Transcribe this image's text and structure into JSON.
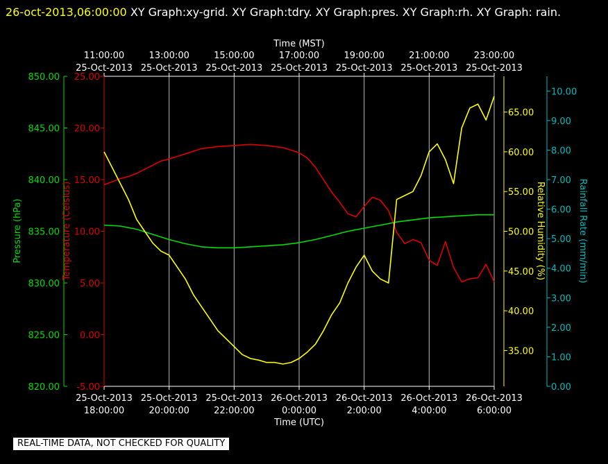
{
  "header": {
    "timestamp": "26-oct-2013,06:00:00",
    "graphs": "  XY Graph:xy-grid.  XY Graph:tdry.  XY Graph:pres.  XY Graph:rh.  XY Graph: rain."
  },
  "footer": {
    "quality_note": "REAL-TIME DATA, NOT CHECKED FOR QUALITY"
  },
  "chart_data": {
    "type": "line",
    "grid": true,
    "top_axis": {
      "label": "Time (MST)",
      "ticks": [
        {
          "x": 0,
          "time": "11:00:00",
          "date": "25-Oct-2013"
        },
        {
          "x": 2,
          "time": "13:00:00",
          "date": "25-Oct-2013"
        },
        {
          "x": 4,
          "time": "15:00:00",
          "date": "25-Oct-2013"
        },
        {
          "x": 6,
          "time": "17:00:00",
          "date": "25-Oct-2013"
        },
        {
          "x": 8,
          "time": "19:00:00",
          "date": "25-Oct-2013"
        },
        {
          "x": 10,
          "time": "21:00:00",
          "date": "25-Oct-2013"
        },
        {
          "x": 12,
          "time": "23:00:00",
          "date": "25-Oct-2013"
        }
      ]
    },
    "bottom_axis": {
      "label": "Time (UTC)",
      "ticks": [
        {
          "x": 0,
          "date": "25-Oct-2013",
          "time": "18:00:00"
        },
        {
          "x": 2,
          "date": "25-Oct-2013",
          "time": "20:00:00"
        },
        {
          "x": 4,
          "date": "25-Oct-2013",
          "time": "22:00:00"
        },
        {
          "x": 6,
          "date": "26-Oct-2013",
          "time": "0:00:00"
        },
        {
          "x": 8,
          "date": "26-Oct-2013",
          "time": "2:00:00"
        },
        {
          "x": 10,
          "date": "26-Oct-2013",
          "time": "4:00:00"
        },
        {
          "x": 12,
          "date": "26-Oct-2013",
          "time": "6:00:00"
        }
      ],
      "xlim": [
        0,
        12
      ]
    },
    "axes": {
      "pressure": {
        "label": "Pressure (hPa)",
        "color": "#00dd00",
        "ylim": [
          820,
          850
        ],
        "ticks": [
          "820.00",
          "825.00",
          "830.00",
          "835.00",
          "840.00",
          "845.00",
          "850.00"
        ]
      },
      "temperature": {
        "label": "Temperature (Celsius)",
        "color": "#dd0000",
        "ylim": [
          -5,
          25
        ],
        "ticks": [
          "-5.00",
          "0.00",
          "5.00",
          "10.00",
          "15.00",
          "20.00",
          "25.00"
        ]
      },
      "humidity": {
        "label": "Relative Humidity (%)",
        "color": "#ffff00",
        "ylim": [
          30.5,
          69.5
        ],
        "ticks": [
          "35.00",
          "40.00",
          "45.00",
          "50.00",
          "55.00",
          "60.00",
          "65.00"
        ]
      },
      "rain": {
        "label": "Rainfall Rate (mm/min)",
        "color": "#00bbbb",
        "ylim": [
          0,
          10.5
        ],
        "ticks": [
          "0.00",
          "1.00",
          "2.00",
          "3.00",
          "4.00",
          "5.00",
          "6.00",
          "7.00",
          "8.00",
          "9.00",
          "10.00"
        ]
      }
    },
    "series": [
      {
        "name": "Temperature",
        "axis": "temperature",
        "color": "#dd0000",
        "x": [
          0,
          0.25,
          0.5,
          0.75,
          1,
          1.25,
          1.5,
          1.75,
          2,
          2.5,
          3,
          3.5,
          4,
          4.5,
          5,
          5.5,
          6,
          6.25,
          6.5,
          6.75,
          7,
          7.25,
          7.5,
          7.75,
          8,
          8.25,
          8.5,
          8.75,
          9,
          9.25,
          9.5,
          9.75,
          10,
          10.25,
          10.5,
          10.75,
          11,
          11.25,
          11.5,
          11.75,
          12
        ],
        "y": [
          14.5,
          14.8,
          15.1,
          15.3,
          15.6,
          16,
          16.4,
          16.8,
          17,
          17.5,
          18,
          18.2,
          18.3,
          18.4,
          18.3,
          18.1,
          17.6,
          17.1,
          16.2,
          15,
          13.8,
          12.8,
          11.7,
          11.4,
          12.4,
          13.3,
          13,
          12,
          9.9,
          8.8,
          9.2,
          8.9,
          7.2,
          6.7,
          9,
          6.5,
          5.1,
          5.4,
          5.5,
          6.8,
          5.1
        ]
      },
      {
        "name": "Pressure",
        "axis": "pressure",
        "color": "#00dd00",
        "x": [
          0,
          0.5,
          1,
          1.5,
          2,
          2.5,
          3,
          3.5,
          4,
          4.5,
          5,
          5.5,
          6,
          6.5,
          7,
          7.5,
          8,
          8.5,
          9,
          9.5,
          10,
          10.5,
          11,
          11.5,
          12
        ],
        "y": [
          835.6,
          835.5,
          835.2,
          834.7,
          834.2,
          833.8,
          833.5,
          833.4,
          833.4,
          833.5,
          833.6,
          833.7,
          833.9,
          834.2,
          834.6,
          835,
          835.3,
          835.6,
          835.9,
          836.1,
          836.3,
          836.4,
          836.5,
          836.6,
          836.6
        ]
      },
      {
        "name": "Relative Humidity",
        "axis": "humidity",
        "color": "#ffff00",
        "x": [
          0,
          0.25,
          0.5,
          0.75,
          1,
          1.25,
          1.5,
          1.75,
          2,
          2.25,
          2.5,
          2.75,
          3,
          3.25,
          3.5,
          3.75,
          4,
          4.25,
          4.5,
          4.75,
          5,
          5.25,
          5.5,
          5.75,
          6,
          6.25,
          6.5,
          6.75,
          7,
          7.25,
          7.5,
          7.75,
          8,
          8.25,
          8.5,
          8.75,
          9,
          9.25,
          9.5,
          9.75,
          10,
          10.25,
          10.5,
          10.75,
          11,
          11.25,
          11.5,
          11.75,
          12
        ],
        "y": [
          60,
          58,
          56,
          54,
          51.5,
          50,
          48.5,
          47.5,
          47,
          45.5,
          44,
          42,
          40.5,
          39,
          37.5,
          36.5,
          35.5,
          34.5,
          34,
          33.8,
          33.5,
          33.5,
          33.3,
          33.5,
          34,
          34.8,
          35.8,
          37.5,
          39.5,
          41,
          43.5,
          45.5,
          47,
          45,
          44,
          43.5,
          54,
          54.5,
          55,
          57,
          60,
          61,
          59,
          56,
          63,
          65.5,
          66,
          64,
          67
        ]
      }
    ]
  }
}
